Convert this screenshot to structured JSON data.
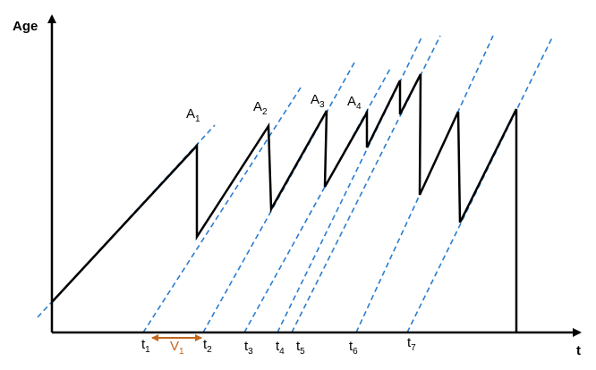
{
  "axes": {
    "y_label": "Age",
    "x_label": "t"
  },
  "peak_labels": [
    {
      "base": "A",
      "sub": "1"
    },
    {
      "base": "A",
      "sub": "2"
    },
    {
      "base": "A",
      "sub": "3"
    },
    {
      "base": "A",
      "sub": "4"
    }
  ],
  "time_labels": [
    {
      "base": "t",
      "sub": "1"
    },
    {
      "base": "t",
      "sub": "2"
    },
    {
      "base": "t",
      "sub": "3"
    },
    {
      "base": "t",
      "sub": "4"
    },
    {
      "base": "t",
      "sub": "5"
    },
    {
      "base": "t",
      "sub": "6"
    },
    {
      "base": "t",
      "sub": "7"
    }
  ],
  "interval_label": {
    "base": "V",
    "sub": "1"
  }
}
